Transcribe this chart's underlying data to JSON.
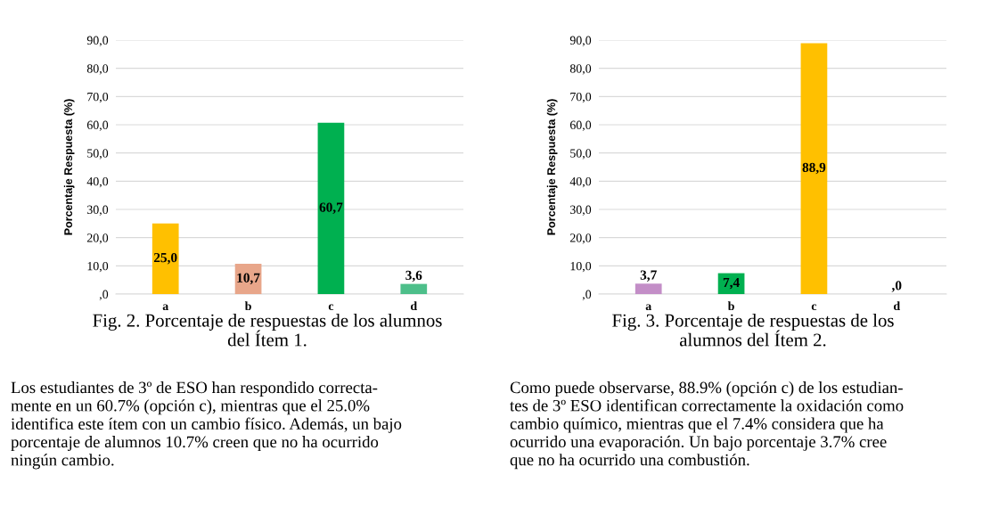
{
  "chart_data": [
    {
      "type": "bar",
      "title": "Fig. 2. Porcentaje de respuestas de los alumnos\ndel Ítem 1.",
      "ylabel": "Porcentaje Respuesta (%)",
      "categories": [
        "a",
        "b",
        "c",
        "d"
      ],
      "values": [
        25.0,
        10.7,
        60.7,
        3.6
      ],
      "colors": [
        "#ffc000",
        "#e8a68a",
        "#00b050",
        "#4dbf8a"
      ],
      "value_labels": [
        "25,0",
        "10,7",
        "60,7",
        "3,6"
      ],
      "ylim": [
        0,
        90
      ],
      "yticks": [
        {
          "value": 0,
          "label": ",0"
        },
        {
          "value": 10,
          "label": "10,0"
        },
        {
          "value": 20,
          "label": "20,0"
        },
        {
          "value": 30,
          "label": "30,0"
        },
        {
          "value": 40,
          "label": "40,0"
        },
        {
          "value": 50,
          "label": "50,0"
        },
        {
          "value": 60,
          "label": "60,0"
        },
        {
          "value": 70,
          "label": "70,0"
        },
        {
          "value": 80,
          "label": "80,0"
        },
        {
          "value": 90,
          "label": "90,0"
        }
      ],
      "grid": "y",
      "legend": false,
      "annotations": [
        "Los estudiantes de 3º de ESO han respondido correcta-\nmente en un 60.7% (opción c), mientras que el 25.0%\nidentifica este ítem con un cambio físico. Además, un bajo\nporcentaje de alumnos 10.7% creen que no ha ocurrido\nningún cambio."
      ]
    },
    {
      "type": "bar",
      "title": "Fig. 3. Porcentaje de respuestas de los\nalumnos del Ítem 2.",
      "ylabel": "Porcentaje Respuesta (%)",
      "categories": [
        "a",
        "b",
        "c",
        "d"
      ],
      "values": [
        3.7,
        7.4,
        88.9,
        0.0
      ],
      "colors": [
        "#c38ec7",
        "#00b050",
        "#ffc000",
        "#4dbf8a"
      ],
      "value_labels": [
        "3,7",
        "7,4",
        "88,9",
        ",0"
      ],
      "ylim": [
        0,
        90
      ],
      "yticks": [
        {
          "value": 0,
          "label": ",0"
        },
        {
          "value": 10,
          "label": "10,0"
        },
        {
          "value": 20,
          "label": "20,0"
        },
        {
          "value": 30,
          "label": "30,0"
        },
        {
          "value": 40,
          "label": "40,0"
        },
        {
          "value": 50,
          "label": "50,0"
        },
        {
          "value": 60,
          "label": "60,0"
        },
        {
          "value": 70,
          "label": "70,0"
        },
        {
          "value": 80,
          "label": "80,0"
        },
        {
          "value": 90,
          "label": "90,0"
        }
      ],
      "grid": "y",
      "legend": false,
      "annotations": [
        "Como puede observarse, 88.9% (opción c) de los estudian-\ntes de 3º ESO identifican correctamente la oxidación como\ncambio químico, mientras que el 7.4% considera que ha\nocurrido una evaporación. Un bajo porcentaje 3.7% cree\nque no ha ocurrido una combustión."
      ]
    }
  ]
}
